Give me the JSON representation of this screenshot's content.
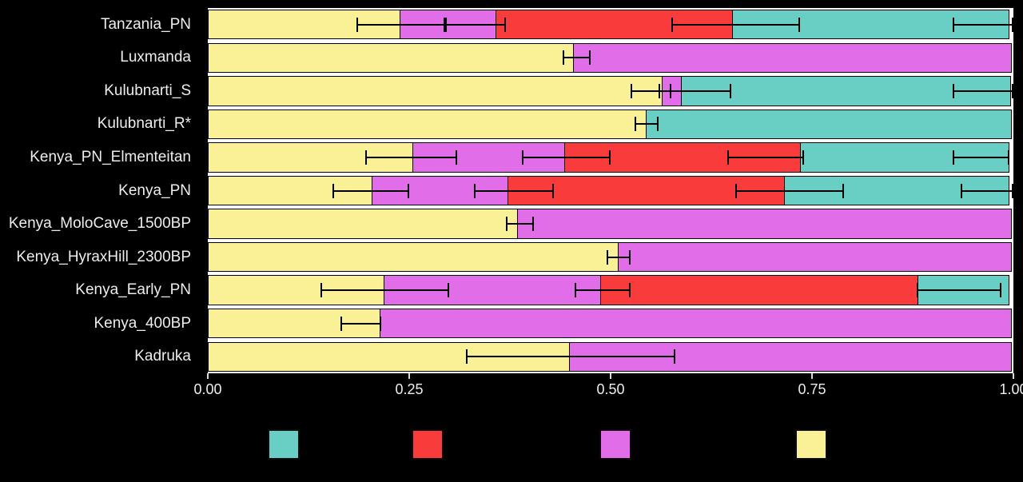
{
  "chart_data": {
    "type": "bar",
    "orientation": "horizontal",
    "stacked": true,
    "title": "",
    "xlabel": "",
    "ylabel": "",
    "xlim": [
      0,
      1
    ],
    "grid": false,
    "x_ticks": [
      "0.00",
      "0.25",
      "0.50",
      "0.75",
      "1.00"
    ],
    "x_tick_values": [
      0,
      0.25,
      0.5,
      0.75,
      1
    ],
    "categories": [
      "Tanzania_PN",
      "Luxmanda",
      "Kulubnarti_S",
      "Kulubnarti_R*",
      "Kenya_PN_Elmenteitan",
      "Kenya_PN",
      "Kenya_MoloCave_1500BP",
      "Kenya_HyraxHill_2300BP",
      "Kenya_Early_PN",
      "Kenya_400BP",
      "Kadruka"
    ],
    "series": [
      {
        "name": "yellow",
        "color": "#FAF095",
        "values": [
          0.24,
          0.455,
          0.565,
          0.545,
          0.255,
          0.205,
          0.385,
          0.51,
          0.22,
          0.215,
          0.45
        ]
      },
      {
        "name": "magenta",
        "color": "#E26DE9",
        "values": [
          0.12,
          0.545,
          0.025,
          0.0,
          0.19,
          0.17,
          0.615,
          0.49,
          0.27,
          0.785,
          0.55
        ]
      },
      {
        "name": "red",
        "color": "#FA3B3B",
        "values": [
          0.295,
          0.0,
          0.0,
          0.0,
          0.295,
          0.345,
          0.0,
          0.0,
          0.395,
          0.0,
          0.0
        ]
      },
      {
        "name": "teal",
        "color": "#69CFC4",
        "values": [
          0.345,
          0.0,
          0.41,
          0.455,
          0.26,
          0.28,
          0.0,
          0.0,
          0.115,
          0.0,
          0.0
        ]
      }
    ],
    "error_bars": [
      [
        [
          0.185,
          0.295
        ],
        [
          0.295,
          0.37
        ],
        [
          0.575,
          0.735
        ],
        [
          0.925,
          1.0
        ]
      ],
      [
        [
          0.44,
          0.475
        ]
      ],
      [
        [
          0.525,
          0.575
        ],
        [
          0.56,
          0.65
        ],
        [
          0.925,
          1.0
        ]
      ],
      [
        [
          0.53,
          0.56
        ]
      ],
      [
        [
          0.195,
          0.31
        ],
        [
          0.39,
          0.5
        ],
        [
          0.645,
          0.74
        ],
        [
          0.925,
          0.995
        ]
      ],
      [
        [
          0.155,
          0.25
        ],
        [
          0.33,
          0.43
        ],
        [
          0.655,
          0.79
        ],
        [
          0.935,
          1.0
        ]
      ],
      [
        [
          0.37,
          0.405
        ]
      ],
      [
        [
          0.495,
          0.525
        ]
      ],
      [
        [
          0.14,
          0.3
        ],
        [
          0.455,
          0.525
        ],
        [
          0.88,
          0.985
        ]
      ],
      [
        [
          0.165,
          0.215
        ]
      ],
      [
        [
          0.32,
          0.58
        ]
      ]
    ],
    "legend": {
      "position": "bottom",
      "entries": [
        {
          "name": "teal",
          "color": "#69CFC4",
          "label": ""
        },
        {
          "name": "red",
          "color": "#FA3B3B",
          "label": ""
        },
        {
          "name": "magenta",
          "color": "#E26DE9",
          "label": ""
        },
        {
          "name": "yellow",
          "color": "#FAF095",
          "label": ""
        }
      ]
    },
    "colors": {
      "background": "#000000",
      "plot_background": "#FFFFFF",
      "bar_outline": "#000000",
      "text": "#EDEDED"
    }
  }
}
